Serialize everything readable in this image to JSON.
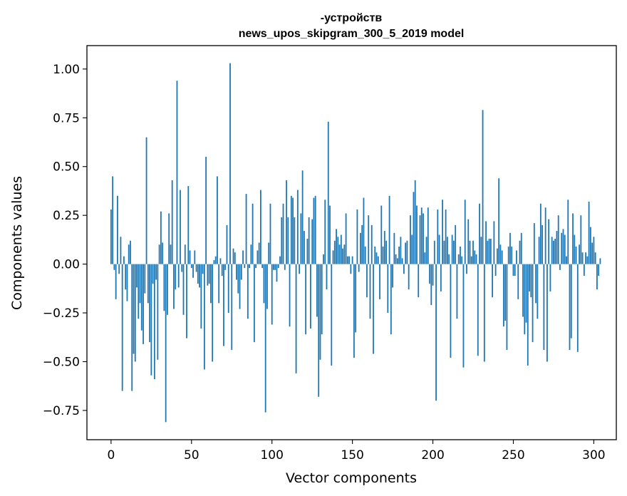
{
  "chart_data": {
    "type": "bar",
    "title_line1": "-устройств",
    "title_line2": "news_upos_skipgram_300_5_2019 model",
    "xlabel": "Vector components",
    "ylabel": "Components values",
    "xlim": [
      -15,
      314
    ],
    "ylim": [
      -0.9,
      1.12
    ],
    "xticks": [
      0,
      50,
      100,
      150,
      200,
      250,
      300
    ],
    "yticks": [
      -0.75,
      -0.5,
      -0.25,
      0.0,
      0.25,
      0.5,
      0.75,
      1.0
    ],
    "ytick_labels": [
      "−0.75",
      "−0.50",
      "−0.25",
      "0.00",
      "0.25",
      "0.50",
      "0.75",
      "1.00"
    ],
    "grid": false,
    "bar_color": "#1f77b4",
    "values": [
      0.28,
      0.45,
      -0.03,
      -0.18,
      0.35,
      -0.05,
      0.14,
      -0.65,
      0.04,
      -0.13,
      -0.19,
      0.1,
      0.12,
      -0.65,
      -0.46,
      -0.5,
      -0.12,
      -0.28,
      -0.2,
      -0.34,
      -0.41,
      -0.15,
      0.65,
      -0.2,
      -0.4,
      -0.57,
      -0.1,
      -0.59,
      -0.08,
      -0.49,
      0.1,
      0.27,
      0.11,
      -0.24,
      -0.81,
      -0.26,
      0.26,
      0.1,
      0.43,
      -0.23,
      -0.13,
      0.94,
      -0.12,
      0.38,
      -0.04,
      -0.26,
      0.1,
      -0.38,
      0.4,
      0.07,
      -0.02,
      -0.07,
      0.07,
      -0.04,
      -0.1,
      -0.12,
      -0.33,
      -0.05,
      -0.54,
      0.55,
      -0.11,
      -0.1,
      -0.2,
      -0.5,
      0.02,
      0.04,
      0.45,
      -0.2,
      0.03,
      -0.06,
      -0.42,
      -0.03,
      0.2,
      -0.25,
      1.03,
      -0.44,
      0.08,
      0.06,
      -0.08,
      -0.15,
      -0.23,
      -0.08,
      0.07,
      -0.02,
      0.36,
      -0.28,
      -0.02,
      0.1,
      0.31,
      -0.4,
      -0.02,
      0.07,
      0.11,
      0.38,
      -0.02,
      -0.2,
      -0.76,
      -0.23,
      0.11,
      0.31,
      -0.31,
      -0.03,
      -0.03,
      -0.09,
      -0.02,
      0.04,
      0.24,
      0.31,
      -0.03,
      0.43,
      0.24,
      -0.32,
      0.35,
      0.34,
      0.24,
      -0.56,
      0.38,
      -0.05,
      0.26,
      0.48,
      0.17,
      -0.36,
      0.13,
      0.24,
      -0.33,
      0.23,
      0.34,
      0.35,
      -0.27,
      -0.68,
      -0.49,
      -0.36,
      0.05,
      0.33,
      -0.13,
      0.73,
      0.3,
      -0.52,
      0.07,
      0.12,
      0.18,
      0.14,
      0.1,
      0.15,
      0.08,
      0.1,
      0.26,
      0.04,
      0.04,
      -0.05,
      0.04,
      -0.48,
      -0.35,
      0.28,
      -0.04,
      0.16,
      0.2,
      0.34,
      0.09,
      -0.17,
      0.25,
      -0.28,
      0.2,
      -0.46,
      0.09,
      0.06,
      0.04,
      -0.18,
      0.3,
      0.09,
      0.17,
      0.12,
      -0.25,
      0.35,
      -0.36,
      -0.12,
      0.16,
      0.05,
      0.03,
      0.09,
      0.14,
      0.03,
      -0.05,
      0.11,
      0.12,
      -0.13,
      0.25,
      0.15,
      0.37,
      0.43,
      0.3,
      -0.17,
      0.25,
      0.29,
      0.26,
      0.06,
      0.14,
      0.29,
      -0.1,
      -0.21,
      -0.11,
      0.12,
      -0.7,
      0.28,
      0.15,
      -0.14,
      0.33,
      0.12,
      0.28,
      0.14,
      0.05,
      -0.48,
      0.15,
      0.12,
      0.2,
      -0.28,
      0.05,
      0.09,
      0.04,
      -0.53,
      0.33,
      -0.05,
      0.23,
      0.12,
      0.04,
      0.12,
      0.07,
      0.05,
      -0.47,
      0.31,
      0.14,
      0.79,
      -0.5,
      0.22,
      0.12,
      0.13,
      0.13,
      -0.17,
      0.22,
      -0.06,
      0.08,
      0.44,
      0.1,
      0.07,
      -0.32,
      -0.29,
      -0.44,
      0.09,
      0.16,
      0.09,
      -0.06,
      -0.06,
      0.07,
      -0.18,
      0.12,
      0.16,
      -0.27,
      -0.36,
      -0.3,
      -0.52,
      -0.14,
      -0.17,
      -0.4,
      0.21,
      -0.2,
      -0.28,
      0.14,
      0.31,
      0.2,
      -0.44,
      0.29,
      -0.5,
      0.23,
      -0.14,
      0.14,
      0.12,
      0.13,
      0.17,
      0.25,
      -0.03,
      0.16,
      0.18,
      0.15,
      0.04,
      0.33,
      -0.44,
      -0.38,
      0.26,
      0.15,
      0.09,
      -0.45,
      0.1,
      0.25,
      0.06,
      -0.06,
      0.06,
      0.04,
      0.32,
      0.19,
      0.11,
      0.14,
      0.06,
      -0.13,
      -0.06,
      0.03
    ]
  }
}
